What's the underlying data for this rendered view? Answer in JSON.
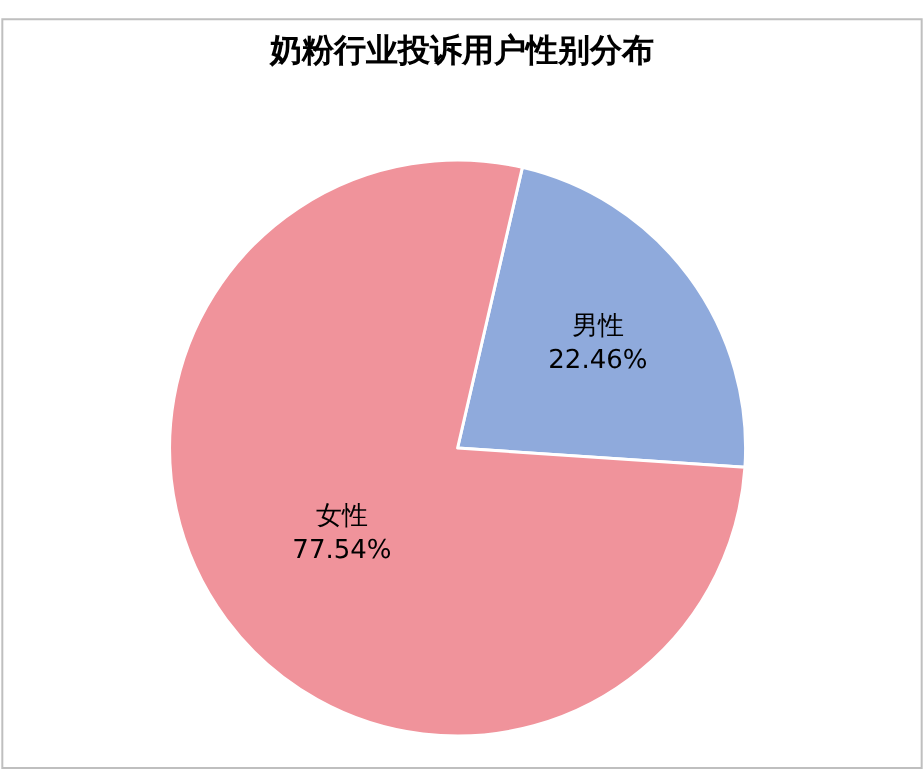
{
  "chart_data": {
    "type": "pie",
    "title": "奶粉行业投诉用户性别分布",
    "categories": [
      "男性",
      "女性"
    ],
    "values": [
      22.46,
      77.54
    ],
    "value_labels": [
      "22.46%",
      "77.54%"
    ],
    "colors": [
      "#8faadc",
      "#f0939b"
    ],
    "legend": false
  }
}
